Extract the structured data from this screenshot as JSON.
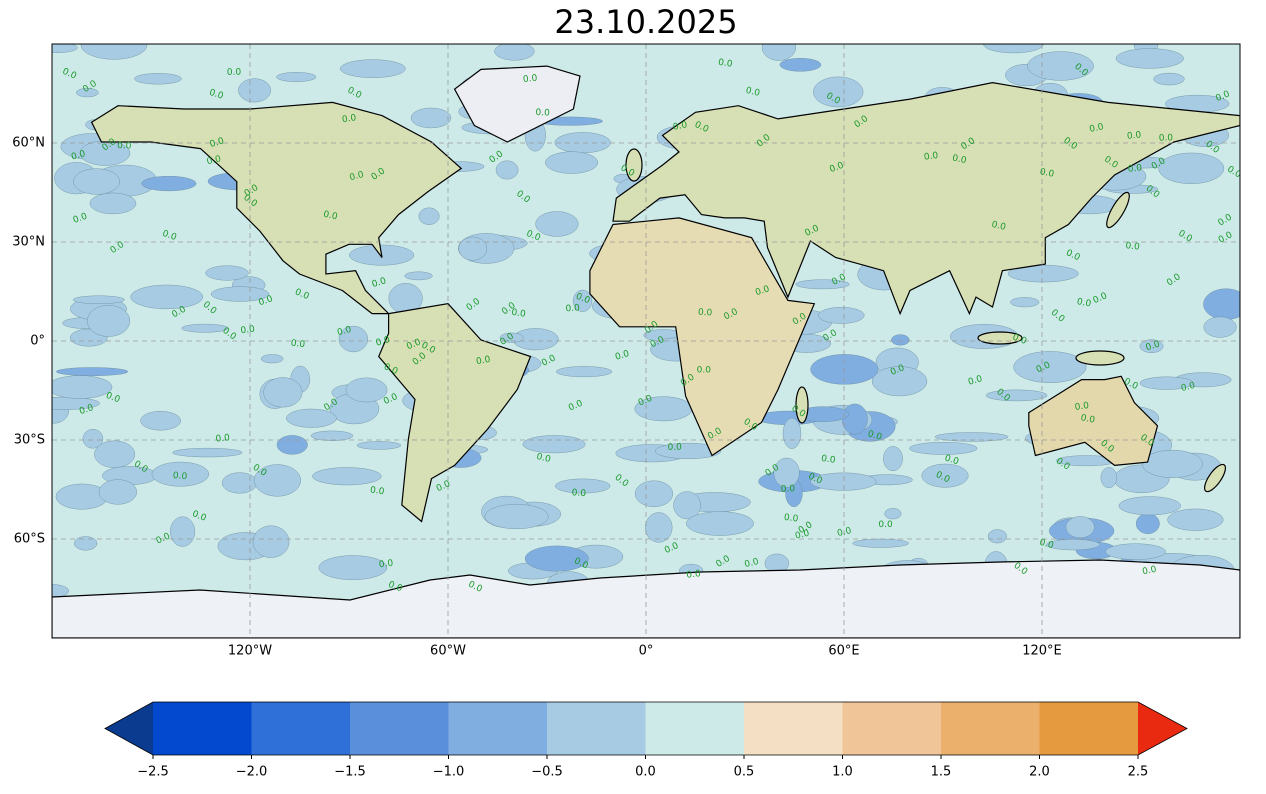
{
  "title": "23.10.2025",
  "map": {
    "lonlim": [
      -180,
      180
    ],
    "latlim": [
      -90,
      90
    ],
    "lon_ticks": [
      {
        "value": -120,
        "label": "120°W"
      },
      {
        "value": -60,
        "label": "60°W"
      },
      {
        "value": 0,
        "label": "0°"
      },
      {
        "value": 60,
        "label": "60°E"
      },
      {
        "value": 120,
        "label": "120°E"
      }
    ],
    "lat_ticks": [
      {
        "value": 60,
        "label": "60°N"
      },
      {
        "value": 30,
        "label": "30°N"
      },
      {
        "value": 0,
        "label": "0°"
      },
      {
        "value": -30,
        "label": "30°S"
      },
      {
        "value": -60,
        "label": "60°S"
      }
    ],
    "contour_label": "0.0"
  },
  "colorbar": {
    "ticks": [
      {
        "value": -2.5,
        "label": "−2.5"
      },
      {
        "value": -2.0,
        "label": "−2.0"
      },
      {
        "value": -1.5,
        "label": "−1.5"
      },
      {
        "value": -1.0,
        "label": "−1.0"
      },
      {
        "value": -0.5,
        "label": "−0.5"
      },
      {
        "value": 0,
        "label": "0.0"
      },
      0.5,
      {
        "value": 1,
        "label": "1.0"
      },
      1.5,
      {
        "value": 2,
        "label": "2.0"
      },
      2.5
    ],
    "colors": [
      "#0349d0",
      "#2f6fd8",
      "#5a8fdc",
      "#80aee0",
      "#a6cbe3",
      "#cdeae9",
      "#f4dfc4",
      "#f0c597",
      "#eab06c",
      "#e59a40"
    ],
    "under_color": "#0a3b8f",
    "over_color": "#ea2a10"
  }
}
